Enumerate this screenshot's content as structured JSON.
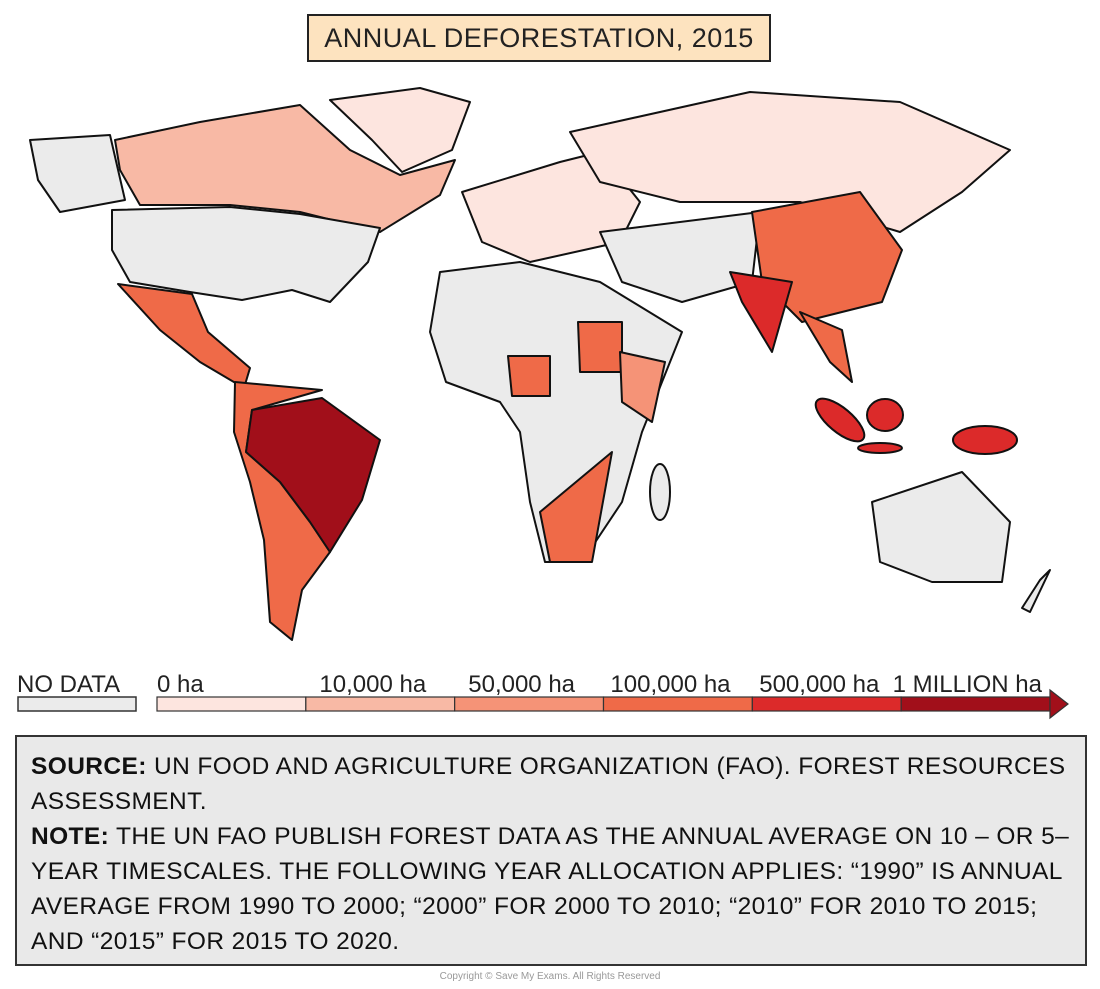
{
  "title": "ANNUAL DEFORESTATION, 2015",
  "legend": {
    "no_data": {
      "label": "NO DATA",
      "color": "#ebebeb"
    },
    "labels": [
      "0 ha",
      "10,000 ha",
      "50,000 ha",
      "100,000 ha",
      "500,000 ha",
      "1 MILLION ha"
    ],
    "bins": [
      "#fde5df",
      "#f8b9a5",
      "#f59377",
      "#ef6a48",
      "#dc2a2a",
      "#a10f1a"
    ]
  },
  "source": {
    "label": "SOURCE:",
    "text": "UN FOOD AND AGRICULTURE ORGANIZATION (FAO). FOREST RESOURCES ASSESSMENT."
  },
  "note": {
    "label": "NOTE:",
    "text": "THE UN FAO PUBLISH FOREST DATA AS THE ANNUAL AVERAGE ON 10 – OR 5–YEAR TIMESCALES. THE FOLLOWING YEAR ALLOCATION APPLIES: “1990” IS ANNUAL AVERAGE FROM 1990 TO 2000; “2000” FOR 2000 TO 2010; “2010” FOR 2010 TO 2015; AND “2015” FOR 2015 TO 2020."
  },
  "copyright": "Copyright © Save My Exams. All Rights Reserved"
}
